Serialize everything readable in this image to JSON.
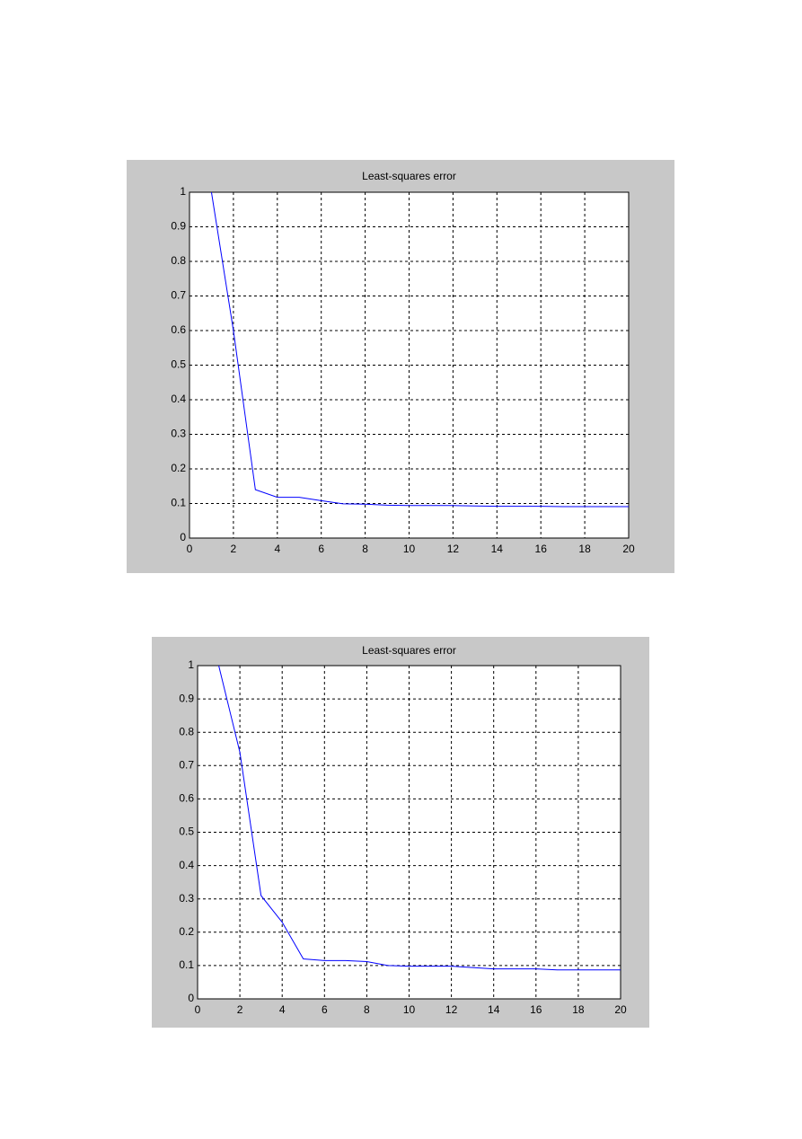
{
  "chart_data": [
    {
      "type": "line",
      "title": "Least-squares error",
      "x": [
        1,
        2,
        3,
        4,
        5,
        6,
        7,
        8,
        9,
        10,
        11,
        12,
        13,
        14,
        15,
        16,
        17,
        18,
        19,
        20
      ],
      "values": [
        1,
        0.6,
        0.14,
        0.118,
        0.118,
        0.108,
        0.099,
        0.098,
        0.095,
        0.094,
        0.094,
        0.094,
        0.093,
        0.092,
        0.092,
        0.092,
        0.091,
        0.091,
        0.091,
        0.091
      ],
      "color": "#0000ff",
      "xlim": [
        0,
        20
      ],
      "xticks": [
        0,
        2,
        4,
        6,
        8,
        10,
        12,
        14,
        16,
        18,
        20
      ],
      "ylim": [
        0,
        1
      ],
      "yticks": [
        0,
        0.1,
        0.2,
        0.3,
        0.4,
        0.5,
        0.6,
        0.7,
        0.8,
        0.9,
        1
      ],
      "grid": true
    },
    {
      "type": "line",
      "title": "Least-squares error",
      "x": [
        1,
        2,
        3,
        4,
        5,
        6,
        7,
        8,
        9,
        10,
        11,
        12,
        13,
        14,
        15,
        16,
        17,
        18,
        19,
        20
      ],
      "values": [
        1,
        0.74,
        0.31,
        0.23,
        0.12,
        0.115,
        0.115,
        0.112,
        0.1,
        0.098,
        0.098,
        0.098,
        0.094,
        0.09,
        0.09,
        0.09,
        0.087,
        0.087,
        0.087,
        0.087
      ],
      "color": "#0000ff",
      "xlim": [
        0,
        20
      ],
      "xticks": [
        0,
        2,
        4,
        6,
        8,
        10,
        12,
        14,
        16,
        18,
        20
      ],
      "ylim": [
        0,
        1
      ],
      "yticks": [
        0,
        0.1,
        0.2,
        0.3,
        0.4,
        0.5,
        0.6,
        0.7,
        0.8,
        0.9,
        1
      ],
      "grid": true
    }
  ]
}
